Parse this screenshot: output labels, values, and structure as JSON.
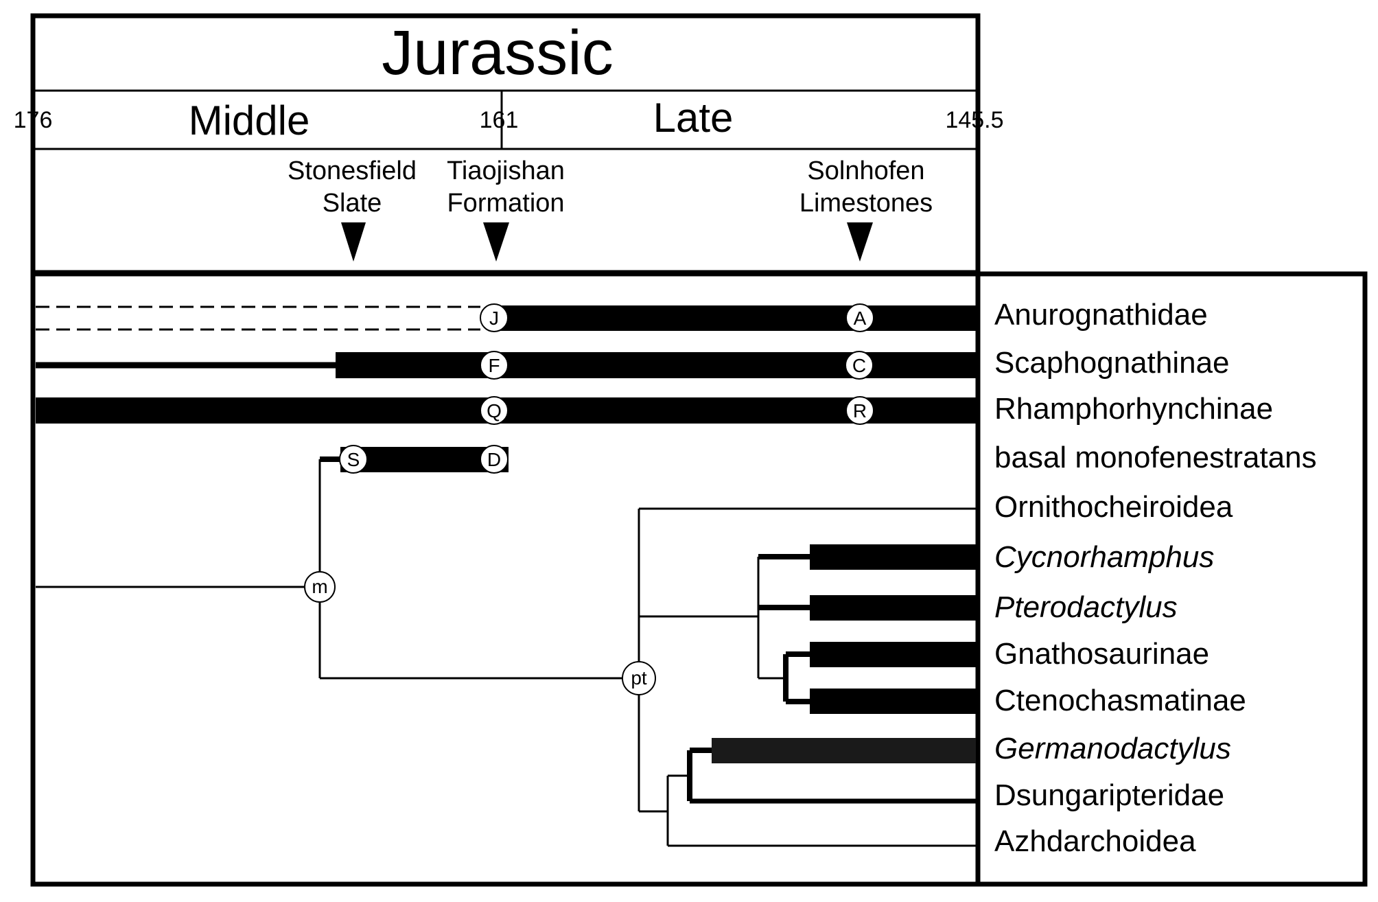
{
  "period": {
    "title": "Jurassic"
  },
  "epochs": [
    {
      "id": "middle",
      "label": "Middle"
    },
    {
      "id": "late",
      "label": "Late"
    }
  ],
  "ages": [
    {
      "id": "age-176",
      "label": "176"
    },
    {
      "id": "age-161",
      "label": "161"
    },
    {
      "id": "age-145",
      "label": "145.5"
    }
  ],
  "formations": [
    {
      "id": "stonesfield-slate",
      "line1": "Stonesfield",
      "line2": "Slate"
    },
    {
      "id": "tiaojishan-formation",
      "line1": "Tiaojishan",
      "line2": "Formation"
    },
    {
      "id": "solnhofen-limestones",
      "line1": "Solnhofen",
      "line2": "Limestones"
    }
  ],
  "taxa": [
    {
      "id": "anurognathidae",
      "label": "Anurognathidae",
      "italic": false
    },
    {
      "id": "scaphognathinae",
      "label": "Scaphognathinae",
      "italic": false
    },
    {
      "id": "rhamphorhynchinae",
      "label": "Rhamphorhynchinae",
      "italic": false
    },
    {
      "id": "basal-monofenestratans",
      "label": "basal monofenestratans",
      "italic": false
    },
    {
      "id": "ornithocheiroidea",
      "label": "Ornithocheiroidea",
      "italic": false
    },
    {
      "id": "cycnorhamphus",
      "label": "Cycnorhamphus",
      "italic": true
    },
    {
      "id": "pterodactylus",
      "label": "Pterodactylus",
      "italic": true
    },
    {
      "id": "gnathosaurinae",
      "label": "Gnathosaurinae",
      "italic": false
    },
    {
      "id": "ctenochasmatinae",
      "label": "Ctenochasmatinae",
      "italic": false
    },
    {
      "id": "germanodactylus",
      "label": "Germanodactylus",
      "italic": true
    },
    {
      "id": "dsungaripteridae",
      "label": "Dsungaripteridae",
      "italic": false
    },
    {
      "id": "azhdarchoidea",
      "label": "Azhdarchoidea",
      "italic": false
    }
  ],
  "markers": {
    "anuro_j": "J",
    "anuro_a": "A",
    "scapho_f": "F",
    "scapho_c": "C",
    "rhampho_q": "Q",
    "rhampho_r": "R",
    "basal_s": "S",
    "basal_d": "D",
    "node_m": "m",
    "node_pt": "pt"
  }
}
